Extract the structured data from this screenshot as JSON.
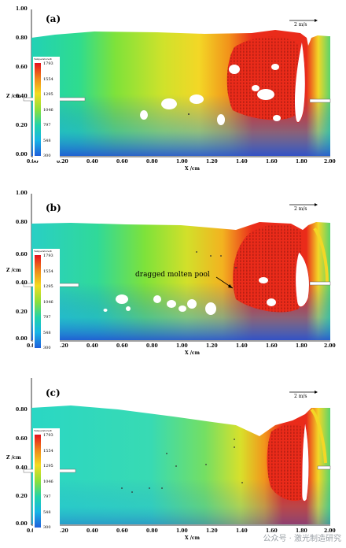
{
  "panels": [
    {
      "label": "(a)",
      "y_ticks": [
        "1.00",
        "0.80",
        "0.60",
        "0.40",
        "0.20",
        "0.00"
      ],
      "x_ticks": [
        "0.00",
        "0.20",
        "0.40",
        "0.60",
        "0.80",
        "1.00",
        "1.20",
        "1.40",
        "1.60",
        "1.80",
        "2.00"
      ],
      "ylabel": "Z /cm",
      "xlabel": "X /cm",
      "scale": "2 m/s",
      "annotation": ""
    },
    {
      "label": "(b)",
      "y_ticks": [
        "1.00",
        "0.80",
        "0.60",
        "0.40",
        "0.20",
        "0.00"
      ],
      "x_ticks": [
        "0.00",
        "0.20",
        "0.40",
        "0.60",
        "0.80",
        "1.00",
        "1.20",
        "1.40",
        "1.60",
        "1.80",
        "2.00"
      ],
      "ylabel": "Z /cm",
      "xlabel": "X /cm",
      "scale": "2 m/s",
      "annotation": "dragged molten pool"
    },
    {
      "label": "(c)",
      "y_ticks": [
        "0.80",
        "0.60",
        "0.40",
        "0.20",
        "0.00"
      ],
      "x_ticks": [
        "0.00",
        "0.20",
        "0.40",
        "0.60",
        "0.80",
        "1.00",
        "1.20",
        "1.40",
        "1.60",
        "1.80",
        "2.00"
      ],
      "ylabel": "Z /cm",
      "xlabel": "X /cm",
      "scale": "2 m/s",
      "annotation": ""
    }
  ],
  "legend": {
    "title": "Temperature/K",
    "levels": [
      "1793",
      "1554",
      "1295",
      "1046",
      "797",
      "548",
      "300"
    ]
  },
  "watermark": "公众号 · 激光制造研究"
}
